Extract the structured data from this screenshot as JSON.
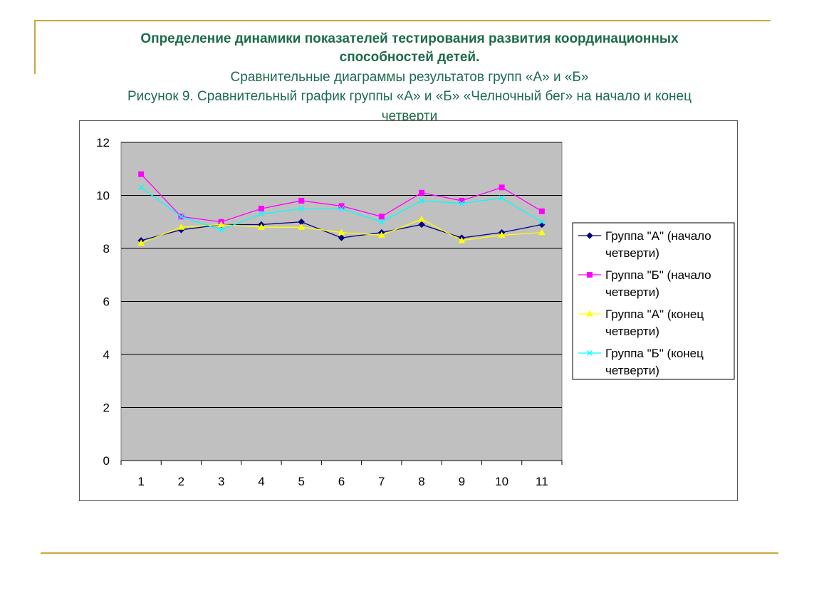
{
  "heading": {
    "line1": "Определение динамики показателей  тестирования развития координационных",
    "line2": "способностей детей.",
    "subtitle": "Сравнительные диаграммы результатов групп «А» и «Б»",
    "figure_line1": "Рисунок 9. Сравнительный  график группы «А» и «Б» «Челночный бег» на начало и конец",
    "figure_line2": "четверти"
  },
  "colors": {
    "accent_gold": "#c8a83a",
    "heading_green": "#1d6b4b",
    "plot_bg": "#c0c0c0"
  },
  "chart_data": {
    "type": "line",
    "categories": [
      "1",
      "2",
      "3",
      "4",
      "5",
      "6",
      "7",
      "8",
      "9",
      "10",
      "11"
    ],
    "ylim": [
      0,
      12
    ],
    "yticks": [
      "0",
      "2",
      "4",
      "6",
      "8",
      "10",
      "12"
    ],
    "grid": true,
    "legend_position": "right",
    "series": [
      {
        "name": "Группа \"А\" (начало четверти)",
        "legend_line1": "Группа \"А\" (начало",
        "legend_line2": "четверти)",
        "color": "#000080",
        "marker": "diamond",
        "values": [
          8.3,
          8.7,
          8.9,
          8.9,
          9.0,
          8.4,
          8.6,
          8.9,
          8.4,
          8.6,
          8.9
        ]
      },
      {
        "name": "Группа \"Б\" (начало четверти)",
        "legend_line1": "Группа \"Б\" (начало",
        "legend_line2": "четверти)",
        "color": "#ff00ff",
        "marker": "square",
        "values": [
          10.8,
          9.2,
          9.0,
          9.5,
          9.8,
          9.6,
          9.2,
          10.1,
          9.8,
          10.3,
          9.4
        ]
      },
      {
        "name": "Группа \"А\" (конец четверти)",
        "legend_line1": "Группа \"А\" (конец",
        "legend_line2": "четверти)",
        "color": "#ffff00",
        "marker": "triangle",
        "values": [
          8.2,
          8.8,
          8.9,
          8.8,
          8.8,
          8.6,
          8.5,
          9.1,
          8.3,
          8.5,
          8.6
        ]
      },
      {
        "name": "Группа \"Б\" (конец четверти)",
        "legend_line1": "Группа \"Б\" (конец",
        "legend_line2": "четверти)",
        "color": "#00ffff",
        "marker": "x",
        "values": [
          10.3,
          9.2,
          8.7,
          9.3,
          9.5,
          9.5,
          9.0,
          9.8,
          9.7,
          9.9,
          9.0
        ]
      }
    ]
  }
}
